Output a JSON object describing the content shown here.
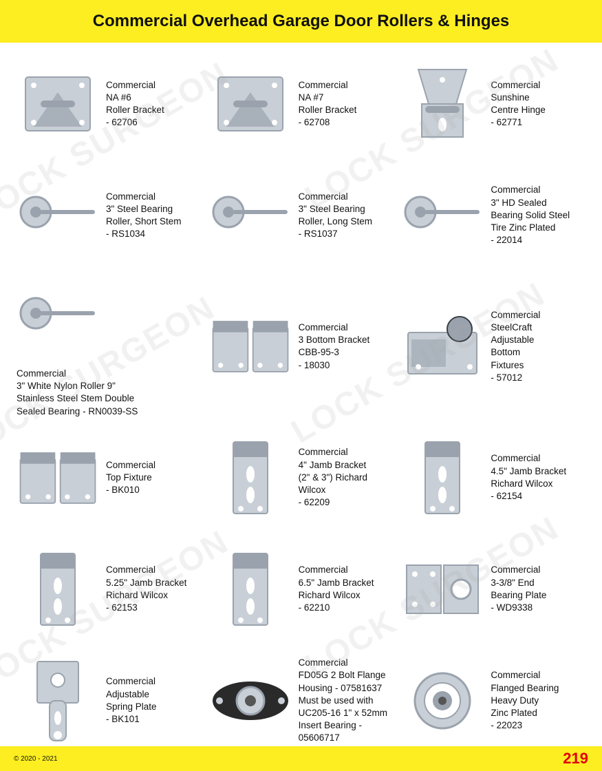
{
  "page": {
    "title": "Commercial Overhead Garage Door Rollers & Hinges",
    "page_number": "219",
    "copyright": "© 2020 - 2021",
    "header_bg": "#fcee21",
    "footer_bg": "#fcee21",
    "page_number_color": "#e3000f",
    "watermark_text": "LOCK SURGEON",
    "watermark_color": "rgba(170,170,170,0.16)"
  },
  "products": [
    {
      "lines": [
        "Commercial",
        "NA #6",
        "Roller Bracket",
        "- 62706"
      ],
      "icon": "bracket"
    },
    {
      "lines": [
        "Commercial",
        "NA #7",
        "Roller Bracket",
        "- 62708"
      ],
      "icon": "bracket"
    },
    {
      "lines": [
        "Commercial",
        "Sunshine",
        "Centre Hinge",
        "- 62771"
      ],
      "icon": "hinge"
    },
    {
      "lines": [
        "Commercial",
        "3\" Steel Bearing",
        "Roller, Short Stem",
        "- RS1034"
      ],
      "icon": "roller"
    },
    {
      "lines": [
        "Commercial",
        "3\" Steel Bearing",
        "Roller, Long Stem",
        "- RS1037"
      ],
      "icon": "roller"
    },
    {
      "lines": [
        "Commercial",
        "3\" HD Sealed",
        "Bearing Solid Steel",
        "Tire Zinc Plated",
        "- 22014"
      ],
      "icon": "roller"
    },
    {
      "lines": [
        "Commercial",
        "3\" White Nylon Roller 9\"",
        "Stainless Steel Stem Double",
        "Sealed Bearing - RN0039-SS"
      ],
      "icon": "roller",
      "layout": "stacked"
    },
    {
      "lines": [
        "Commercial",
        "3 Bottom Bracket",
        "CBB-95-3",
        "- 18030"
      ],
      "icon": "bracket-pair"
    },
    {
      "lines": [
        "Commercial",
        "SteelCraft",
        "Adjustable",
        "Bottom",
        "Fixtures",
        "- 57012"
      ],
      "icon": "fixture"
    },
    {
      "lines": [
        "Commercial",
        "Top Fixture",
        "- BK010"
      ],
      "icon": "bracket-pair"
    },
    {
      "lines": [
        "Commercial",
        "4\" Jamb Bracket",
        "(2\" & 3\") Richard Wilcox",
        "- 62209"
      ],
      "icon": "jamb"
    },
    {
      "lines": [
        "Commercial",
        "4.5\" Jamb Bracket",
        "Richard Wilcox",
        "- 62154"
      ],
      "icon": "jamb"
    },
    {
      "lines": [
        "Commercial",
        "5.25\" Jamb Bracket",
        "Richard Wilcox",
        "- 62153"
      ],
      "icon": "jamb"
    },
    {
      "lines": [
        "Commercial",
        "6.5\" Jamb Bracket",
        "Richard Wilcox",
        "- 62210"
      ],
      "icon": "jamb"
    },
    {
      "lines": [
        "Commercial",
        "3-3/8\" End",
        "Bearing Plate",
        "- WD9338"
      ],
      "icon": "plate"
    },
    {
      "lines": [
        "Commercial",
        "Adjustable",
        "Spring Plate",
        "- BK101"
      ],
      "icon": "spring-plate"
    },
    {
      "lines": [
        "Commercial",
        "FD05G 2 Bolt Flange",
        "Housing - 07581637",
        "Must be used with",
        "UC205-16 1\" x 52mm",
        "Insert Bearing - 05606717"
      ],
      "icon": "flange"
    },
    {
      "lines": [
        "Commercial",
        "Flanged Bearing",
        "Heavy Duty",
        "Zinc Plated",
        "- 22023"
      ],
      "icon": "bearing"
    }
  ]
}
